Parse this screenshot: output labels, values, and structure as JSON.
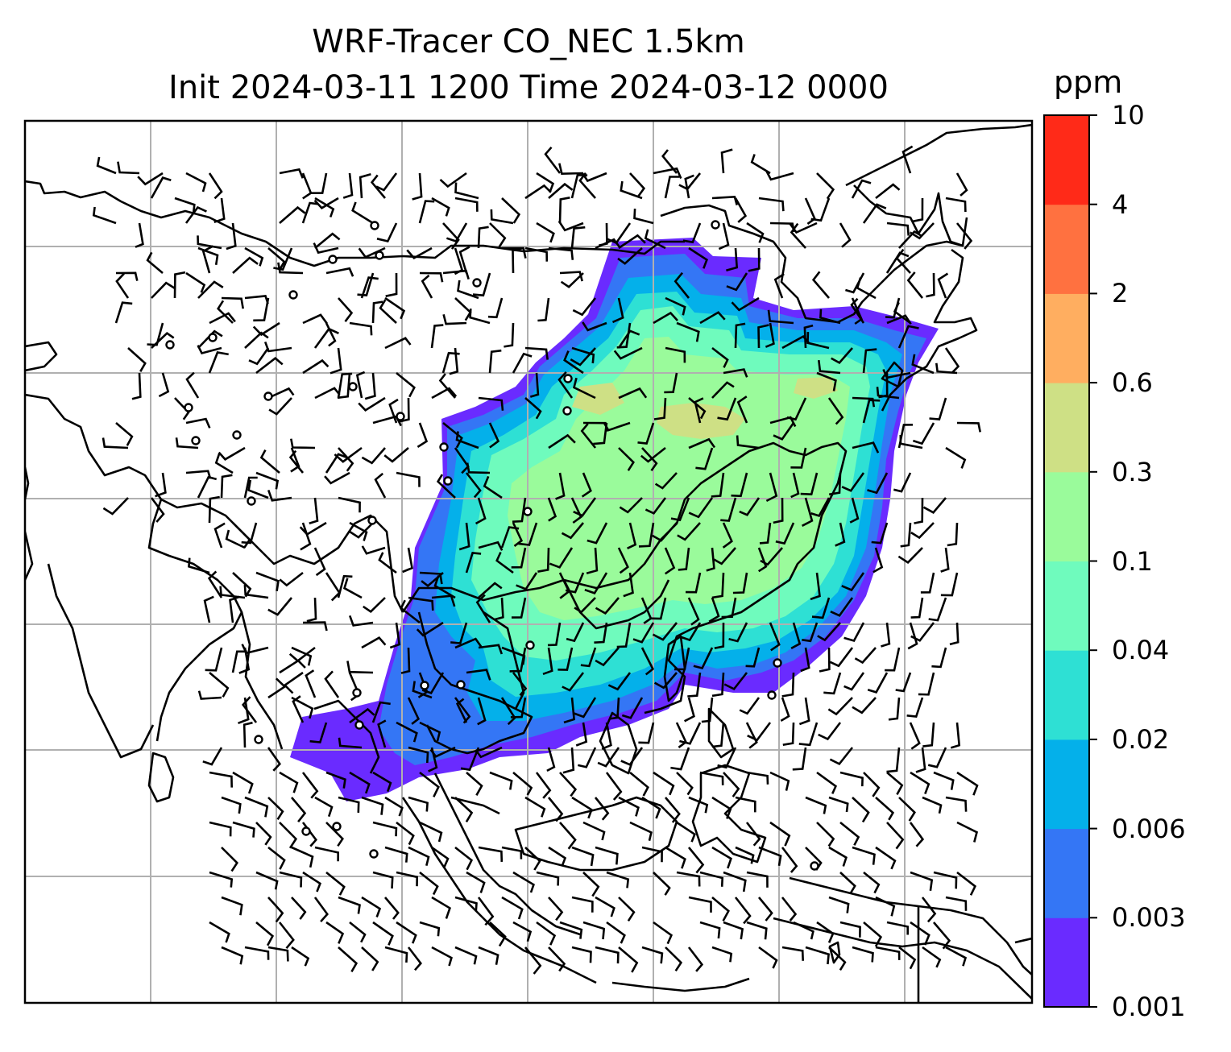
{
  "title_line1": "WRF-Tracer CO_NEC 1.5km",
  "title_line2": "Init 2024-03-11 1200 Time 2024-03-12 0000",
  "colorbar": {
    "unit": "ppm",
    "levels": [
      "0.001",
      "0.003",
      "0.006",
      "0.02",
      "0.04",
      "0.1",
      "0.3",
      "0.6",
      "2",
      "4",
      "10"
    ],
    "colors": [
      "#6a2bff",
      "#3476f5",
      "#04b0ea",
      "#2ee0d4",
      "#6ffbbd",
      "#9afb9b",
      "#cee085",
      "#ffae60",
      "#ff7140",
      "#ff2a18"
    ]
  },
  "map": {
    "gridlines": true,
    "coastline_color": "#000000",
    "barb_color": "#000000"
  }
}
